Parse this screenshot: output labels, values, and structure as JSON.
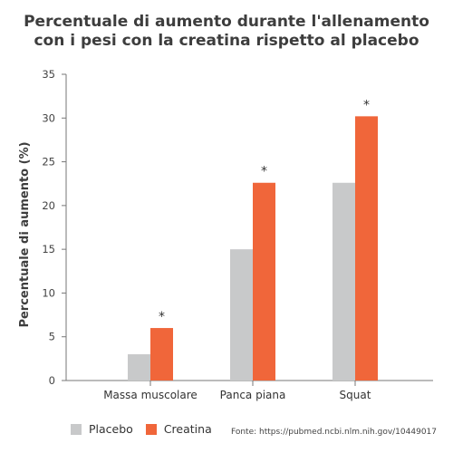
{
  "title_lines": [
    "Percentuale di aumento durante l'allenamento",
    "con i pesi con la creatina rispetto al placebo"
  ],
  "source": "Fonte: https://pubmed.ncbi.nlm.nih.gov/10449017",
  "chart_data": {
    "type": "bar",
    "title": "Percentuale di aumento durante l'allenamento con i pesi con la creatina rispetto al placebo",
    "xlabel": "",
    "ylabel": "Percentuale di aumento (%)",
    "ylim": [
      0,
      35
    ],
    "yticks": [
      0,
      5,
      10,
      15,
      20,
      25,
      30,
      35
    ],
    "categories": [
      "Massa muscolare",
      "Panca piana",
      "Squat"
    ],
    "series": [
      {
        "name": "Placebo",
        "color": "#c8c9ca",
        "values": [
          3.0,
          15.0,
          22.6
        ]
      },
      {
        "name": "Creatina",
        "color": "#f0663a",
        "values": [
          6.0,
          22.6,
          30.2
        ]
      }
    ],
    "annotations": [
      "*",
      "*",
      "*"
    ],
    "grid": false,
    "legend_position": "bottom-left"
  }
}
